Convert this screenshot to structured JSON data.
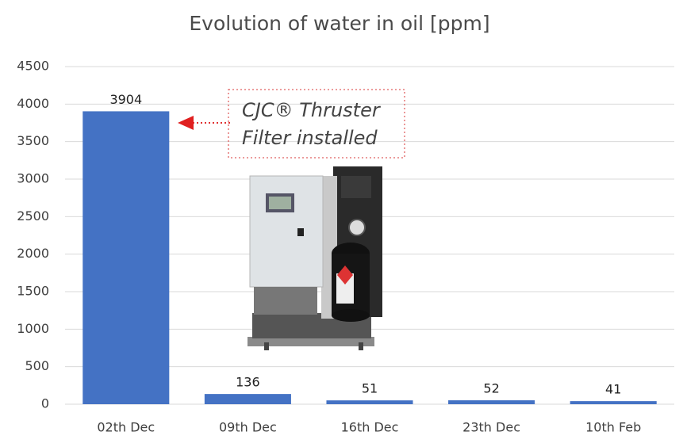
{
  "chart_data": {
    "type": "bar",
    "title": "Evolution of water in oil [ppm]",
    "categories": [
      "02th Dec",
      "09th Dec",
      "16th Dec",
      "23th Dec",
      "10th Feb"
    ],
    "values": [
      3904,
      136,
      51,
      52,
      41
    ],
    "color": "#4472c4",
    "ylim": [
      0,
      4500
    ],
    "yticks": [
      0,
      500,
      1000,
      1500,
      2000,
      2500,
      3000,
      3500,
      4000,
      4500
    ],
    "grid": true,
    "annotation": [
      "CJC® Thruster",
      "Filter installed"
    ]
  }
}
